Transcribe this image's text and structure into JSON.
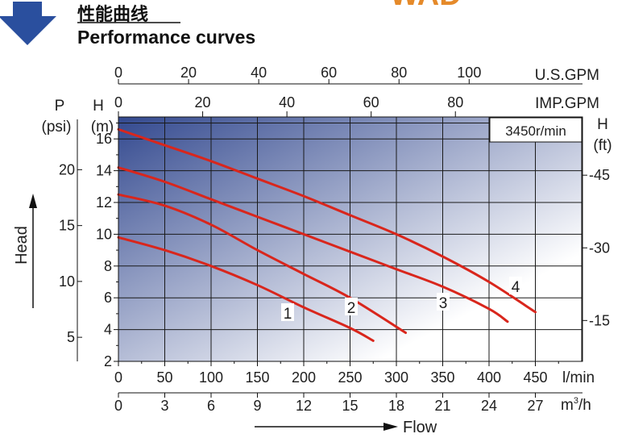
{
  "header": {
    "logo_text": "WAD",
    "title_zh": "性能曲线",
    "title_en": "Performance curves"
  },
  "colors": {
    "arrow": "#2a4f9e",
    "logo": "#e58a2a",
    "curve": "#d9261c",
    "plot_dark": "#33498f",
    "plot_light": "#ffffff",
    "grid": "#1a1a1a"
  },
  "chart_data": {
    "type": "line",
    "annotation": "3450r/min",
    "x_primary": {
      "label": "l/min",
      "ticks": [
        0,
        50,
        100,
        150,
        200,
        250,
        300,
        350,
        400,
        450
      ],
      "lim": [
        0,
        500
      ]
    },
    "x_m3h": {
      "label": "m³/h",
      "ticks": [
        0,
        3,
        6,
        9,
        12,
        15,
        18,
        21,
        24,
        27
      ]
    },
    "x_usgpm": {
      "label": "U.S.GPM",
      "ticks": [
        0,
        20,
        40,
        60,
        80,
        100
      ]
    },
    "x_impgpm": {
      "label": "IMP.GPM",
      "ticks": [
        0,
        20,
        40,
        60,
        80
      ]
    },
    "y_primary": {
      "label": "H",
      "unit": "(m)",
      "ticks": [
        2,
        4,
        6,
        8,
        10,
        12,
        14,
        16
      ],
      "lim": [
        2,
        17
      ]
    },
    "y_psi": {
      "label": "P",
      "unit": "(psi)",
      "ticks": [
        5,
        10,
        15,
        20
      ]
    },
    "y_ft": {
      "label": "H",
      "unit": "(ft)",
      "ticks": [
        15,
        30,
        45
      ]
    },
    "axis_title_left": "Head",
    "axis_title_bottom": "Flow",
    "series": [
      {
        "name": "1",
        "x": [
          0,
          50,
          100,
          150,
          200,
          250,
          275
        ],
        "y": [
          9.8,
          9.0,
          8.0,
          6.8,
          5.4,
          4.1,
          3.3
        ]
      },
      {
        "name": "2",
        "x": [
          0,
          50,
          100,
          150,
          200,
          250,
          310
        ],
        "y": [
          12.5,
          11.8,
          10.6,
          9.0,
          7.5,
          6.0,
          3.8
        ]
      },
      {
        "name": "3",
        "x": [
          0,
          50,
          100,
          150,
          200,
          250,
          300,
          350,
          400,
          420
        ],
        "y": [
          14.2,
          13.3,
          12.2,
          11.1,
          10.0,
          8.9,
          7.8,
          6.7,
          5.3,
          4.5
        ]
      },
      {
        "name": "4",
        "x": [
          0,
          50,
          100,
          150,
          200,
          250,
          300,
          350,
          400,
          450
        ],
        "y": [
          16.6,
          15.6,
          14.6,
          13.5,
          12.4,
          11.2,
          10.0,
          8.6,
          7.0,
          5.1
        ]
      }
    ]
  }
}
